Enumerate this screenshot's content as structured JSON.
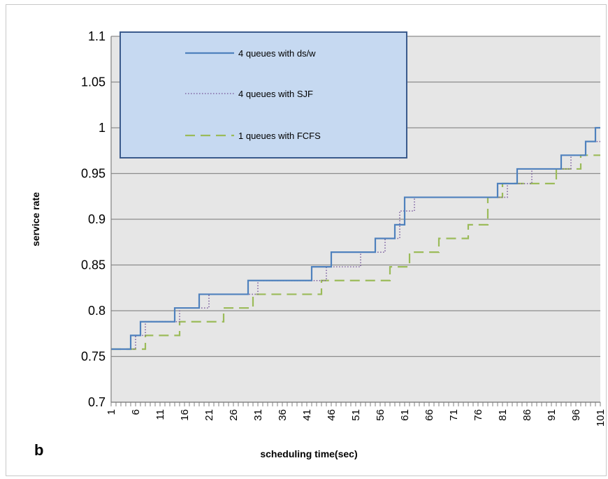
{
  "chart_data": {
    "type": "line",
    "panel_label": "b",
    "title": "",
    "xlabel": "scheduling time(sec)",
    "ylabel": "service rate",
    "xlim": [
      1,
      101
    ],
    "ylim": [
      0.7,
      1.1
    ],
    "y_ticks": [
      "0.7",
      "0.75",
      "0.8",
      "0.85",
      "0.9",
      "0.95",
      "1",
      "1.05",
      "1.1"
    ],
    "x_ticks": [
      "1",
      "6",
      "11",
      "16",
      "21",
      "26",
      "31",
      "36",
      "41",
      "46",
      "51",
      "56",
      "61",
      "66",
      "71",
      "76",
      "81",
      "86",
      "91",
      "96",
      "101"
    ],
    "grid": "horizontal",
    "legend_position": "top-left",
    "series": [
      {
        "name": "4 queues with ds/w",
        "color": "#4f81bd",
        "style": "solid",
        "steps": [
          [
            1,
            0.758
          ],
          [
            5,
            0.773
          ],
          [
            7,
            0.788
          ],
          [
            14,
            0.803
          ],
          [
            19,
            0.818
          ],
          [
            29,
            0.833
          ],
          [
            42,
            0.848
          ],
          [
            46,
            0.864
          ],
          [
            55,
            0.879
          ],
          [
            59,
            0.894
          ],
          [
            61,
            0.924
          ],
          [
            80,
            0.939
          ],
          [
            84,
            0.955
          ],
          [
            93,
            0.97
          ],
          [
            98,
            0.985
          ],
          [
            100,
            1.0
          ],
          [
            101,
            1.0
          ]
        ]
      },
      {
        "name": "4 queues with SJF",
        "color": "#8064a2",
        "style": "dotted",
        "steps": [
          [
            1,
            0.758
          ],
          [
            6,
            0.773
          ],
          [
            8,
            0.788
          ],
          [
            15,
            0.803
          ],
          [
            21,
            0.818
          ],
          [
            31,
            0.833
          ],
          [
            45,
            0.848
          ],
          [
            52,
            0.864
          ],
          [
            57,
            0.879
          ],
          [
            60,
            0.909
          ],
          [
            63,
            0.924
          ],
          [
            82,
            0.939
          ],
          [
            87,
            0.955
          ],
          [
            95,
            0.97
          ],
          [
            98,
            0.985
          ],
          [
            101,
            0.985
          ]
        ]
      },
      {
        "name": "1 queues with FCFS",
        "color": "#9bbb59",
        "style": "dashed",
        "steps": [
          [
            1,
            0.758
          ],
          [
            8,
            0.773
          ],
          [
            15,
            0.788
          ],
          [
            24,
            0.803
          ],
          [
            30,
            0.818
          ],
          [
            44,
            0.833
          ],
          [
            58,
            0.848
          ],
          [
            62,
            0.864
          ],
          [
            68,
            0.879
          ],
          [
            74,
            0.894
          ],
          [
            78,
            0.924
          ],
          [
            81,
            0.939
          ],
          [
            92,
            0.955
          ],
          [
            97,
            0.97
          ],
          [
            101,
            0.97
          ]
        ]
      }
    ]
  },
  "legend_box": {
    "fill": "#c6d9f1",
    "border": "#3a5a8c"
  }
}
